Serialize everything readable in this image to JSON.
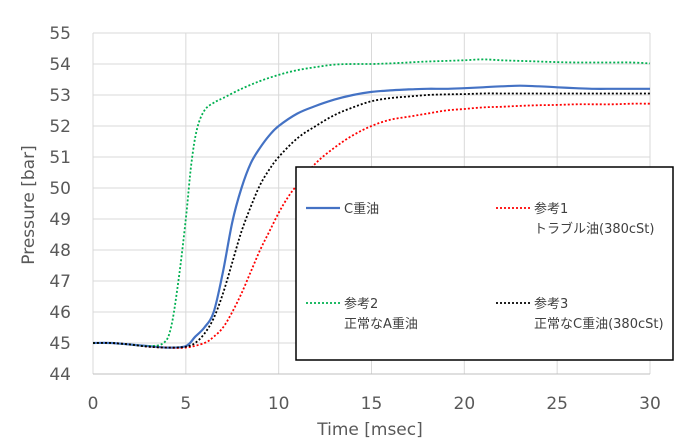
{
  "chart_data": {
    "type": "line",
    "title": "",
    "xlabel": "Time [msec]",
    "ylabel": "Pressure [bar]",
    "xlim": [
      0,
      30
    ],
    "ylim": [
      44,
      55
    ],
    "x_ticks": [
      "0",
      "5",
      "10",
      "15",
      "20",
      "25",
      "30"
    ],
    "y_ticks": [
      "44",
      "45",
      "46",
      "47",
      "48",
      "49",
      "50",
      "51",
      "52",
      "53",
      "54",
      "55"
    ],
    "grid": true,
    "legend_placement": "inside-lower-right",
    "series": [
      {
        "name": "C重油",
        "legend_lines": [
          "C重油"
        ],
        "color": "#4472c4",
        "dash": "solid",
        "x": [
          0,
          1,
          2,
          3,
          4,
          5,
          5.5,
          6,
          6.5,
          7,
          7.5,
          8,
          8.5,
          9,
          9.5,
          10,
          11,
          12,
          13,
          14,
          15,
          16,
          17,
          18,
          19,
          20,
          21,
          22,
          23,
          24,
          25,
          26,
          27,
          28,
          29,
          30
        ],
        "values": [
          45.0,
          45.0,
          44.95,
          44.9,
          44.85,
          44.9,
          45.2,
          45.5,
          46.0,
          47.3,
          48.9,
          50.0,
          50.8,
          51.3,
          51.7,
          52.0,
          52.4,
          52.65,
          52.85,
          53.0,
          53.1,
          53.15,
          53.18,
          53.2,
          53.2,
          53.22,
          53.25,
          53.28,
          53.3,
          53.28,
          53.25,
          53.22,
          53.2,
          53.2,
          53.2,
          53.2
        ]
      },
      {
        "name": "参考1 トラブル油(380cSt)",
        "legend_lines": [
          "参考1",
          "トラブル油(380cSt)"
        ],
        "color": "#ff0000",
        "dash": "dotted",
        "x": [
          0,
          1,
          2,
          3,
          4,
          5,
          6,
          6.5,
          7,
          7.5,
          8,
          8.5,
          9,
          9.5,
          10,
          10.5,
          11,
          12,
          13,
          14,
          15,
          16,
          17,
          18,
          19,
          20,
          21,
          22,
          23,
          24,
          25,
          26,
          27,
          28,
          29,
          30
        ],
        "values": [
          45.0,
          45.0,
          44.95,
          44.88,
          44.85,
          44.85,
          45.0,
          45.2,
          45.5,
          46.0,
          46.6,
          47.3,
          48.0,
          48.6,
          49.2,
          49.7,
          50.1,
          50.8,
          51.3,
          51.7,
          52.0,
          52.2,
          52.3,
          52.4,
          52.5,
          52.55,
          52.6,
          52.62,
          52.65,
          52.67,
          52.68,
          52.7,
          52.7,
          52.7,
          52.72,
          52.72
        ]
      },
      {
        "name": "参考2 正常なA重油",
        "legend_lines": [
          "参考2",
          "正常なA重油"
        ],
        "color": "#00b050",
        "dash": "dotted",
        "x": [
          0,
          1,
          2,
          3,
          3.8,
          4.2,
          4.6,
          5,
          5.3,
          5.6,
          6,
          6.5,
          7,
          8,
          9,
          10,
          11,
          12,
          13,
          14,
          15,
          16,
          17,
          18,
          19,
          20,
          21,
          22,
          23,
          24,
          25,
          26,
          27,
          28,
          29,
          30
        ],
        "values": [
          45.0,
          45.0,
          44.95,
          44.9,
          45.0,
          45.5,
          47.0,
          49.0,
          50.8,
          51.9,
          52.5,
          52.75,
          52.9,
          53.2,
          53.45,
          53.65,
          53.8,
          53.9,
          53.98,
          54.0,
          54.0,
          54.02,
          54.05,
          54.08,
          54.1,
          54.12,
          54.15,
          54.12,
          54.1,
          54.08,
          54.06,
          54.05,
          54.05,
          54.05,
          54.05,
          54.02
        ]
      },
      {
        "name": "参考3 正常なC重油(380cSt)",
        "legend_lines": [
          "参考3",
          "正常なC重油(380cSt)"
        ],
        "color": "#000000",
        "dash": "dotted",
        "x": [
          0,
          1,
          2,
          3,
          4,
          5,
          5.5,
          6,
          6.5,
          7,
          7.5,
          8,
          8.5,
          9,
          9.5,
          10,
          11,
          12,
          13,
          14,
          15,
          16,
          17,
          18,
          19,
          20,
          21,
          22,
          23,
          24,
          25,
          26,
          27,
          28,
          29,
          30
        ],
        "values": [
          45.0,
          45.0,
          44.95,
          44.88,
          44.85,
          44.88,
          45.0,
          45.3,
          45.8,
          46.6,
          47.6,
          48.6,
          49.4,
          50.1,
          50.6,
          51.0,
          51.6,
          52.0,
          52.35,
          52.6,
          52.8,
          52.9,
          52.95,
          53.0,
          53.02,
          53.03,
          53.05,
          53.05,
          53.05,
          53.05,
          53.05,
          53.05,
          53.05,
          53.05,
          53.05,
          53.05
        ]
      }
    ]
  }
}
